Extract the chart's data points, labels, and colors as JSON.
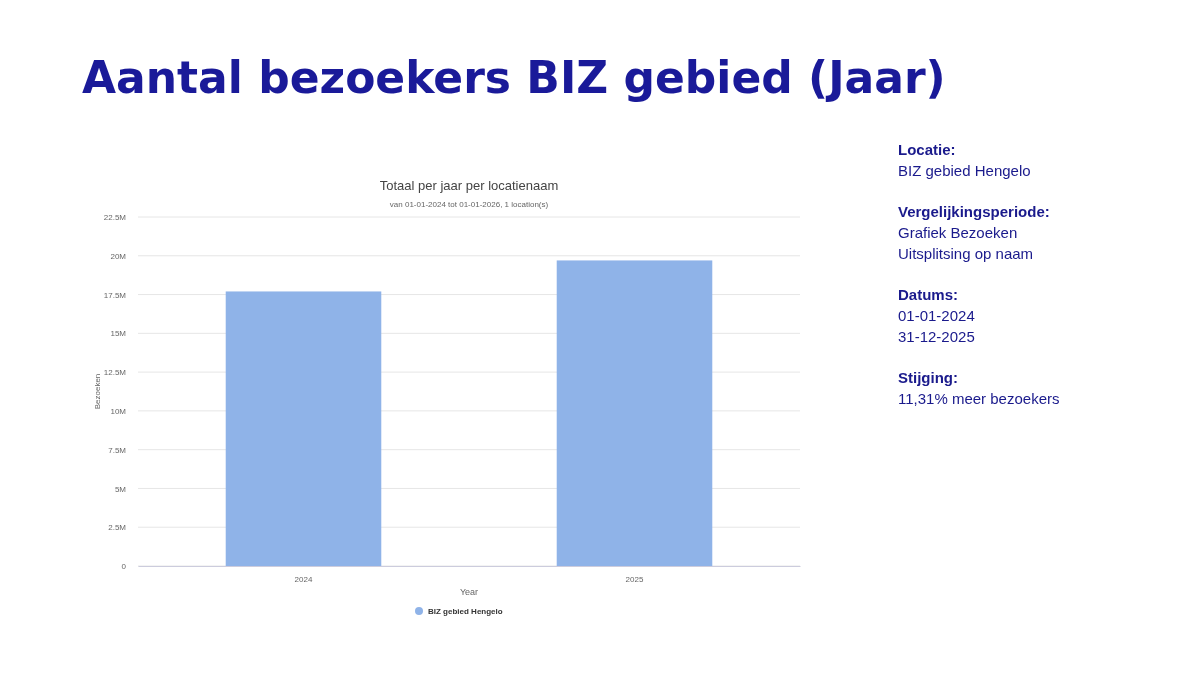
{
  "chart_data": {
    "type": "bar",
    "title": "Aantal bezoekers BIZ gebied (Jaar)",
    "subtitle": "Totaal per jaar per locatienaam",
    "xlabel": "Year",
    "ylabel": "Bezoeken",
    "categories": [
      "2024",
      "2025"
    ],
    "series": [
      {
        "name": "BIZ gebied Hengelo",
        "color": "#8fb3e8",
        "values": [
          17700000,
          19700000
        ]
      }
    ],
    "ylim": [
      0,
      22500000
    ],
    "yticks": [
      0,
      {
        "value": 2500000,
        "label": "2.5M"
      },
      {
        "value": 5000000,
        "label": "5M"
      },
      {
        "value": 7500000,
        "label": "7.5M"
      },
      {
        "value": 10000000,
        "label": "10M"
      },
      {
        "value": 12500000,
        "label": "12.5M"
      },
      {
        "value": 15000000,
        "label": "15M"
      },
      {
        "value": 17500000,
        "label": "17.5M"
      },
      {
        "value": 20000000,
        "label": "20M"
      },
      {
        "value": 22500000,
        "label": "22.5M"
      }
    ],
    "grid": "y",
    "legend": "bottom",
    "annotations": [
      "van 01-01-2024 tot 01-01-2026, 1 location(s)",
      "Locatie:\nBIZ gebied Hengelo",
      "Vergelijkingsperiode:\nGrafiek Bezoeken\nUitsplitsing op naam",
      "Datums:\n01-01-2024\n31-12-2025",
      "Stijging:\n11,31% meer bezoekers"
    ]
  }
}
